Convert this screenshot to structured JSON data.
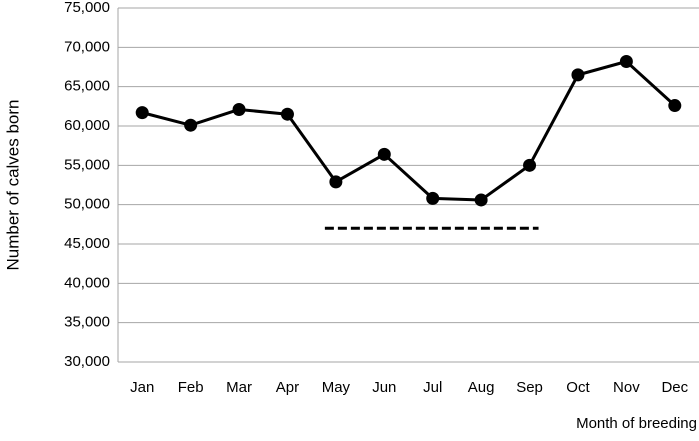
{
  "chart_data": {
    "type": "line",
    "categories": [
      "Jan",
      "Feb",
      "Mar",
      "Apr",
      "May",
      "Jun",
      "Jul",
      "Aug",
      "Sep",
      "Oct",
      "Nov",
      "Dec"
    ],
    "series": [
      {
        "name": "Number of calves born",
        "color": "#000000",
        "values": [
          61700,
          60100,
          62100,
          61500,
          52900,
          56400,
          50800,
          50600,
          55000,
          66500,
          68200,
          62600
        ]
      }
    ],
    "y_label": "Number of calves born",
    "x_label": "Month of breeding",
    "ylim": [
      30000,
      75000
    ],
    "yticks": [
      {
        "value": 30000,
        "label": "30,000"
      },
      {
        "value": 35000,
        "label": "35,000"
      },
      {
        "value": 40000,
        "label": "40,000"
      },
      {
        "value": 45000,
        "label": "45,000"
      },
      {
        "value": 50000,
        "label": "50,000"
      },
      {
        "value": 55000,
        "label": "55,000"
      },
      {
        "value": 60000,
        "label": "60,000"
      },
      {
        "value": 65000,
        "label": "65,000"
      },
      {
        "value": 70000,
        "label": "70,000"
      },
      {
        "value": 75000,
        "label": "75,000"
      }
    ],
    "grid": true,
    "reference_line": {
      "y": 47000,
      "x_start": "May",
      "x_end": "Sep"
    }
  }
}
